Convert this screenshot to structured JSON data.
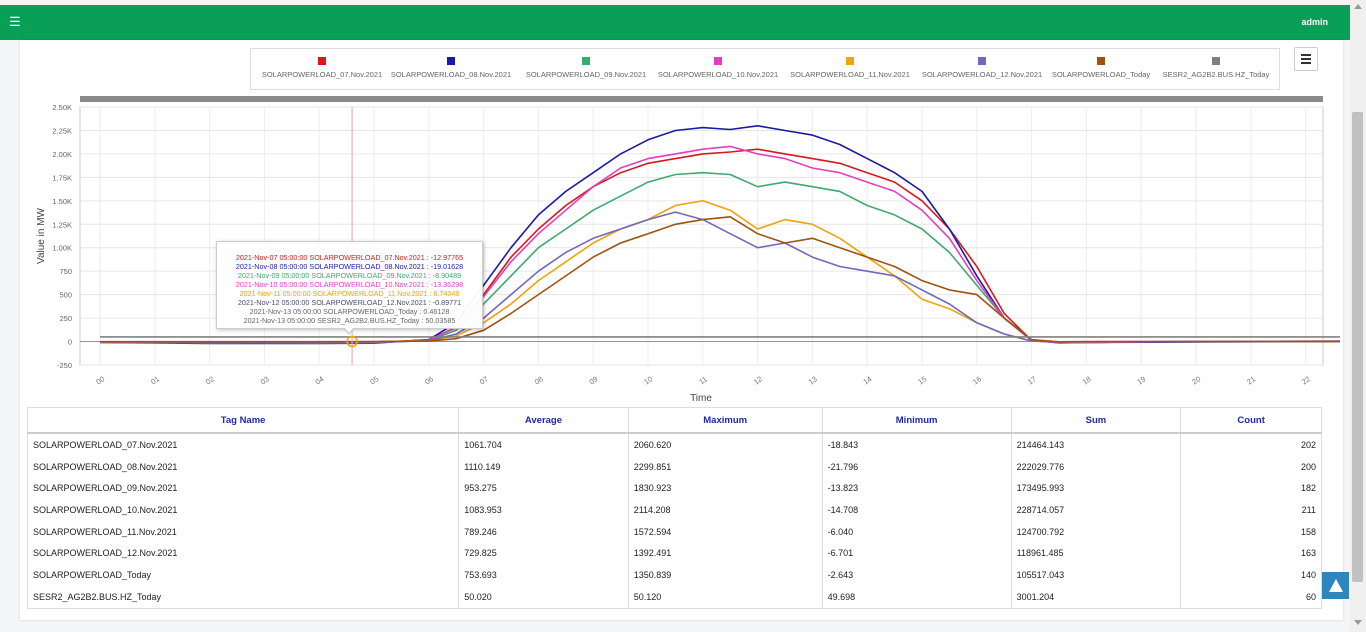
{
  "topbar": {
    "menu_icon": "☰",
    "user_label": "admin",
    "color": "#0a9f57"
  },
  "legend": [
    {
      "name": "SOLARPOWERLOAD_07.Nov.2021",
      "color": "#d7191c"
    },
    {
      "name": "SOLARPOWERLOAD_08.Nov.2021",
      "color": "#1a1aa6"
    },
    {
      "name": "SOLARPOWERLOAD_09.Nov.2021",
      "color": "#3cab6e"
    },
    {
      "name": "SOLARPOWERLOAD_10.Nov.2021",
      "color": "#e040c0"
    },
    {
      "name": "SOLARPOWERLOAD_11.Nov.2021",
      "color": "#f0a30a"
    },
    {
      "name": "SOLARPOWERLOAD_12.Nov.2021",
      "color": "#7366bd"
    },
    {
      "name": "SOLARPOWERLOAD_Today",
      "color": "#a0520f"
    },
    {
      "name": "SESR2_AG2B2.BUS.HZ_Today",
      "color": "#808080"
    }
  ],
  "chart_data": {
    "type": "line",
    "xlabel": "Time",
    "ylabel": "Value in MW",
    "x_ticks": [
      "00",
      "01",
      "02",
      "03",
      "04",
      "05",
      "06",
      "07",
      "08",
      "09",
      "10",
      "11",
      "12",
      "13",
      "14",
      "15",
      "16",
      "17",
      "18",
      "19",
      "20",
      "21",
      "22"
    ],
    "y_ticks": [
      "-250",
      "0",
      "250",
      "500",
      "750",
      "1.00K",
      "1.25K",
      "1.50K",
      "1.75K",
      "2.00K",
      "2.25K",
      "2.50K"
    ],
    "ylim": [
      -250,
      2500
    ],
    "xlim": [
      0,
      22.8
    ],
    "grid": true,
    "series": [
      {
        "name": "SOLARPOWERLOAD_07.Nov.2021",
        "color": "#d7191c",
        "points": [
          [
            0,
            -5
          ],
          [
            2,
            -15
          ],
          [
            4,
            -18
          ],
          [
            5,
            -12
          ],
          [
            6,
            20
          ],
          [
            6.5,
            150
          ],
          [
            7,
            500
          ],
          [
            7.5,
            900
          ],
          [
            8,
            1200
          ],
          [
            8.5,
            1450
          ],
          [
            9,
            1650
          ],
          [
            9.5,
            1800
          ],
          [
            10,
            1900
          ],
          [
            10.5,
            1950
          ],
          [
            11,
            2000
          ],
          [
            11.5,
            2020
          ],
          [
            12,
            2050
          ],
          [
            12.5,
            2000
          ],
          [
            13,
            1950
          ],
          [
            13.5,
            1900
          ],
          [
            14,
            1800
          ],
          [
            14.5,
            1700
          ],
          [
            15,
            1500
          ],
          [
            15.5,
            1200
          ],
          [
            16,
            800
          ],
          [
            16.5,
            300
          ],
          [
            17,
            10
          ],
          [
            17.5,
            -12
          ],
          [
            18,
            -10
          ],
          [
            20,
            0
          ],
          [
            22.8,
            5
          ]
        ]
      },
      {
        "name": "SOLARPOWERLOAD_08.Nov.2021",
        "color": "#1a1aa6",
        "points": [
          [
            0,
            -10
          ],
          [
            2,
            -20
          ],
          [
            4,
            -21
          ],
          [
            5,
            -18
          ],
          [
            6,
            20
          ],
          [
            6.5,
            200
          ],
          [
            7,
            600
          ],
          [
            7.5,
            1000
          ],
          [
            8,
            1350
          ],
          [
            8.5,
            1600
          ],
          [
            9,
            1800
          ],
          [
            9.5,
            2000
          ],
          [
            10,
            2150
          ],
          [
            10.5,
            2250
          ],
          [
            11,
            2280
          ],
          [
            11.5,
            2260
          ],
          [
            12,
            2300
          ],
          [
            12.5,
            2250
          ],
          [
            13,
            2200
          ],
          [
            13.5,
            2100
          ],
          [
            14,
            1950
          ],
          [
            14.5,
            1800
          ],
          [
            15,
            1600
          ],
          [
            15.5,
            1200
          ],
          [
            16,
            700
          ],
          [
            16.5,
            250
          ],
          [
            17,
            20
          ],
          [
            17.5,
            -15
          ],
          [
            18,
            -10
          ],
          [
            20,
            -5
          ],
          [
            22.8,
            0
          ]
        ]
      },
      {
        "name": "SOLARPOWERLOAD_09.Nov.2021",
        "color": "#3cab6e",
        "points": [
          [
            0,
            -8
          ],
          [
            2,
            -13
          ],
          [
            4,
            -12
          ],
          [
            5,
            -10
          ],
          [
            6,
            10
          ],
          [
            6.5,
            120
          ],
          [
            7,
            400
          ],
          [
            7.5,
            700
          ],
          [
            8,
            1000
          ],
          [
            8.5,
            1200
          ],
          [
            9,
            1400
          ],
          [
            9.5,
            1550
          ],
          [
            10,
            1700
          ],
          [
            10.5,
            1780
          ],
          [
            11,
            1800
          ],
          [
            11.5,
            1780
          ],
          [
            12,
            1650
          ],
          [
            12.5,
            1700
          ],
          [
            13,
            1650
          ],
          [
            13.5,
            1600
          ],
          [
            14,
            1450
          ],
          [
            14.5,
            1350
          ],
          [
            15,
            1200
          ],
          [
            15.5,
            950
          ],
          [
            16,
            600
          ],
          [
            16.5,
            250
          ],
          [
            17,
            10
          ],
          [
            17.5,
            -10
          ],
          [
            18,
            -8
          ],
          [
            20,
            0
          ],
          [
            22.8,
            5
          ]
        ]
      },
      {
        "name": "SOLARPOWERLOAD_10.Nov.2021",
        "color": "#e040c0",
        "points": [
          [
            0,
            -6
          ],
          [
            2,
            -13
          ],
          [
            4,
            -14
          ],
          [
            5,
            -12
          ],
          [
            6,
            15
          ],
          [
            6.5,
            150
          ],
          [
            7,
            480
          ],
          [
            7.5,
            850
          ],
          [
            8,
            1150
          ],
          [
            8.5,
            1400
          ],
          [
            9,
            1650
          ],
          [
            9.5,
            1850
          ],
          [
            10,
            1950
          ],
          [
            10.5,
            2000
          ],
          [
            11,
            2050
          ],
          [
            11.5,
            2080
          ],
          [
            12,
            2000
          ],
          [
            12.5,
            1950
          ],
          [
            13,
            1850
          ],
          [
            13.5,
            1800
          ],
          [
            14,
            1700
          ],
          [
            14.5,
            1600
          ],
          [
            15,
            1400
          ],
          [
            15.5,
            1100
          ],
          [
            16,
            650
          ],
          [
            16.5,
            250
          ],
          [
            17,
            10
          ],
          [
            17.5,
            -12
          ],
          [
            18,
            -10
          ],
          [
            20,
            0
          ],
          [
            22.8,
            5
          ]
        ]
      },
      {
        "name": "SOLARPOWERLOAD_11.Nov.2021",
        "color": "#f0a30a",
        "points": [
          [
            0,
            -3
          ],
          [
            2,
            -6
          ],
          [
            4,
            -5
          ],
          [
            5,
            -4
          ],
          [
            6,
            10
          ],
          [
            6.5,
            60
          ],
          [
            7,
            200
          ],
          [
            7.5,
            400
          ],
          [
            8,
            650
          ],
          [
            8.5,
            850
          ],
          [
            9,
            1050
          ],
          [
            9.5,
            1200
          ],
          [
            10,
            1300
          ],
          [
            10.5,
            1450
          ],
          [
            11,
            1500
          ],
          [
            11.5,
            1400
          ],
          [
            12,
            1200
          ],
          [
            12.5,
            1300
          ],
          [
            13,
            1250
          ],
          [
            13.5,
            1100
          ],
          [
            14,
            900
          ],
          [
            14.5,
            700
          ],
          [
            15,
            450
          ],
          [
            15.5,
            350
          ],
          [
            16,
            200
          ],
          [
            16.5,
            80
          ],
          [
            17,
            5
          ],
          [
            17.5,
            -5
          ],
          [
            18,
            -3
          ],
          [
            20,
            0
          ],
          [
            22.8,
            2
          ]
        ]
      },
      {
        "name": "SOLARPOWERLOAD_12.Nov.2021",
        "color": "#7366bd",
        "points": [
          [
            0,
            -4
          ],
          [
            2,
            -7
          ],
          [
            4,
            -6
          ],
          [
            5,
            -5
          ],
          [
            6,
            8
          ],
          [
            6.5,
            80
          ],
          [
            7,
            250
          ],
          [
            7.5,
            500
          ],
          [
            8,
            750
          ],
          [
            8.5,
            950
          ],
          [
            9,
            1100
          ],
          [
            9.5,
            1200
          ],
          [
            10,
            1300
          ],
          [
            10.5,
            1380
          ],
          [
            11,
            1300
          ],
          [
            11.5,
            1150
          ],
          [
            12,
            1000
          ],
          [
            12.5,
            1050
          ],
          [
            13,
            900
          ],
          [
            13.5,
            800
          ],
          [
            14,
            750
          ],
          [
            14.5,
            700
          ],
          [
            15,
            550
          ],
          [
            15.5,
            400
          ],
          [
            16,
            200
          ],
          [
            16.5,
            80
          ],
          [
            17,
            5
          ],
          [
            17.5,
            -5
          ],
          [
            18,
            -3
          ],
          [
            20,
            0
          ],
          [
            22.8,
            2
          ]
        ]
      },
      {
        "name": "SOLARPOWERLOAD_Today",
        "color": "#a0520f",
        "points": [
          [
            0,
            -2
          ],
          [
            2,
            -2
          ],
          [
            4,
            -2
          ],
          [
            5,
            0
          ],
          [
            6,
            5
          ],
          [
            6.5,
            30
          ],
          [
            7,
            120
          ],
          [
            7.5,
            300
          ],
          [
            8,
            500
          ],
          [
            8.5,
            700
          ],
          [
            9,
            900
          ],
          [
            9.5,
            1050
          ],
          [
            10,
            1150
          ],
          [
            10.5,
            1250
          ],
          [
            11,
            1300
          ],
          [
            11.5,
            1330
          ],
          [
            12,
            1150
          ],
          [
            12.5,
            1050
          ],
          [
            13,
            1100
          ],
          [
            13.5,
            1000
          ],
          [
            14,
            900
          ],
          [
            14.5,
            800
          ],
          [
            15,
            650
          ],
          [
            15.5,
            550
          ],
          [
            16,
            500
          ],
          [
            16.5,
            250
          ],
          [
            17,
            20
          ],
          [
            17.5,
            -3
          ],
          [
            18,
            0
          ],
          [
            20,
            0
          ],
          [
            22.8,
            0
          ]
        ]
      },
      {
        "name": "SESR2_AG2B2.BUS.HZ_Today",
        "color": "#808080",
        "points": [
          [
            0,
            50
          ],
          [
            5,
            50
          ],
          [
            10,
            50
          ],
          [
            15,
            50
          ],
          [
            20,
            50
          ],
          [
            22.8,
            50
          ]
        ]
      }
    ],
    "crosshair_x": 4.6
  },
  "tooltip": [
    {
      "text": "2021-Nov-07 05:00:00   SOLARPOWERLOAD_07.Nov.2021 : -12.97765",
      "color": "#d7191c"
    },
    {
      "text": "2021-Nov-08 05:00:00   SOLARPOWERLOAD_08.Nov.2021 : -19.01628",
      "color": "#1a1aa6"
    },
    {
      "text": "2021-Nov-09 05:00:00   SOLARPOWERLOAD_09.Nov.2021 : -8.90489",
      "color": "#3cab6e"
    },
    {
      "text": "2021-Nov-10 05:00:00   SOLARPOWERLOAD_10.Nov.2021 : -13.36298",
      "color": "#e040c0"
    },
    {
      "text": "2021-Nov-11 05:00:00   SOLARPOWERLOAD_11.Nov.2021 : 6.74048",
      "color": "#f0a30a"
    },
    {
      "text": "2021-Nov-12 05:00:00   SOLARPOWERLOAD_12.Nov.2021 : -0.89771",
      "color": "#4a4a7a"
    },
    {
      "text": "2021-Nov-13 05:00:00   SOLARPOWERLOAD_Today : 0.46128",
      "color": "#666666"
    },
    {
      "text": "2021-Nov-13 05:00:00   SESR2_AG2B2.BUS.HZ_Today : 50.03585",
      "color": "#666666"
    }
  ],
  "table": {
    "headers": [
      "Tag Name",
      "Average",
      "Maximum",
      "Minimum",
      "Sum",
      "Count"
    ],
    "rows": [
      [
        "SOLARPOWERLOAD_07.Nov.2021",
        "1061.704",
        "2060.620",
        "-18.843",
        "214464.143",
        "202"
      ],
      [
        "SOLARPOWERLOAD_08.Nov.2021",
        "1110.149",
        "2299.851",
        "-21.796",
        "222029.776",
        "200"
      ],
      [
        "SOLARPOWERLOAD_09.Nov.2021",
        "953.275",
        "1830.923",
        "-13.823",
        "173495.993",
        "182"
      ],
      [
        "SOLARPOWERLOAD_10.Nov.2021",
        "1083.953",
        "2114.208",
        "-14.708",
        "228714.057",
        "211"
      ],
      [
        "SOLARPOWERLOAD_11.Nov.2021",
        "789.246",
        "1572.594",
        "-6.040",
        "124700.792",
        "158"
      ],
      [
        "SOLARPOWERLOAD_12.Nov.2021",
        "729.825",
        "1392.491",
        "-6.701",
        "118961.485",
        "163"
      ],
      [
        "SOLARPOWERLOAD_Today",
        "753.693",
        "1350.839",
        "-2.643",
        "105517.043",
        "140"
      ],
      [
        "SESR2_AG2B2.BUS.HZ_Today",
        "50.020",
        "50.120",
        "49.698",
        "3001.204",
        "60"
      ]
    ]
  }
}
